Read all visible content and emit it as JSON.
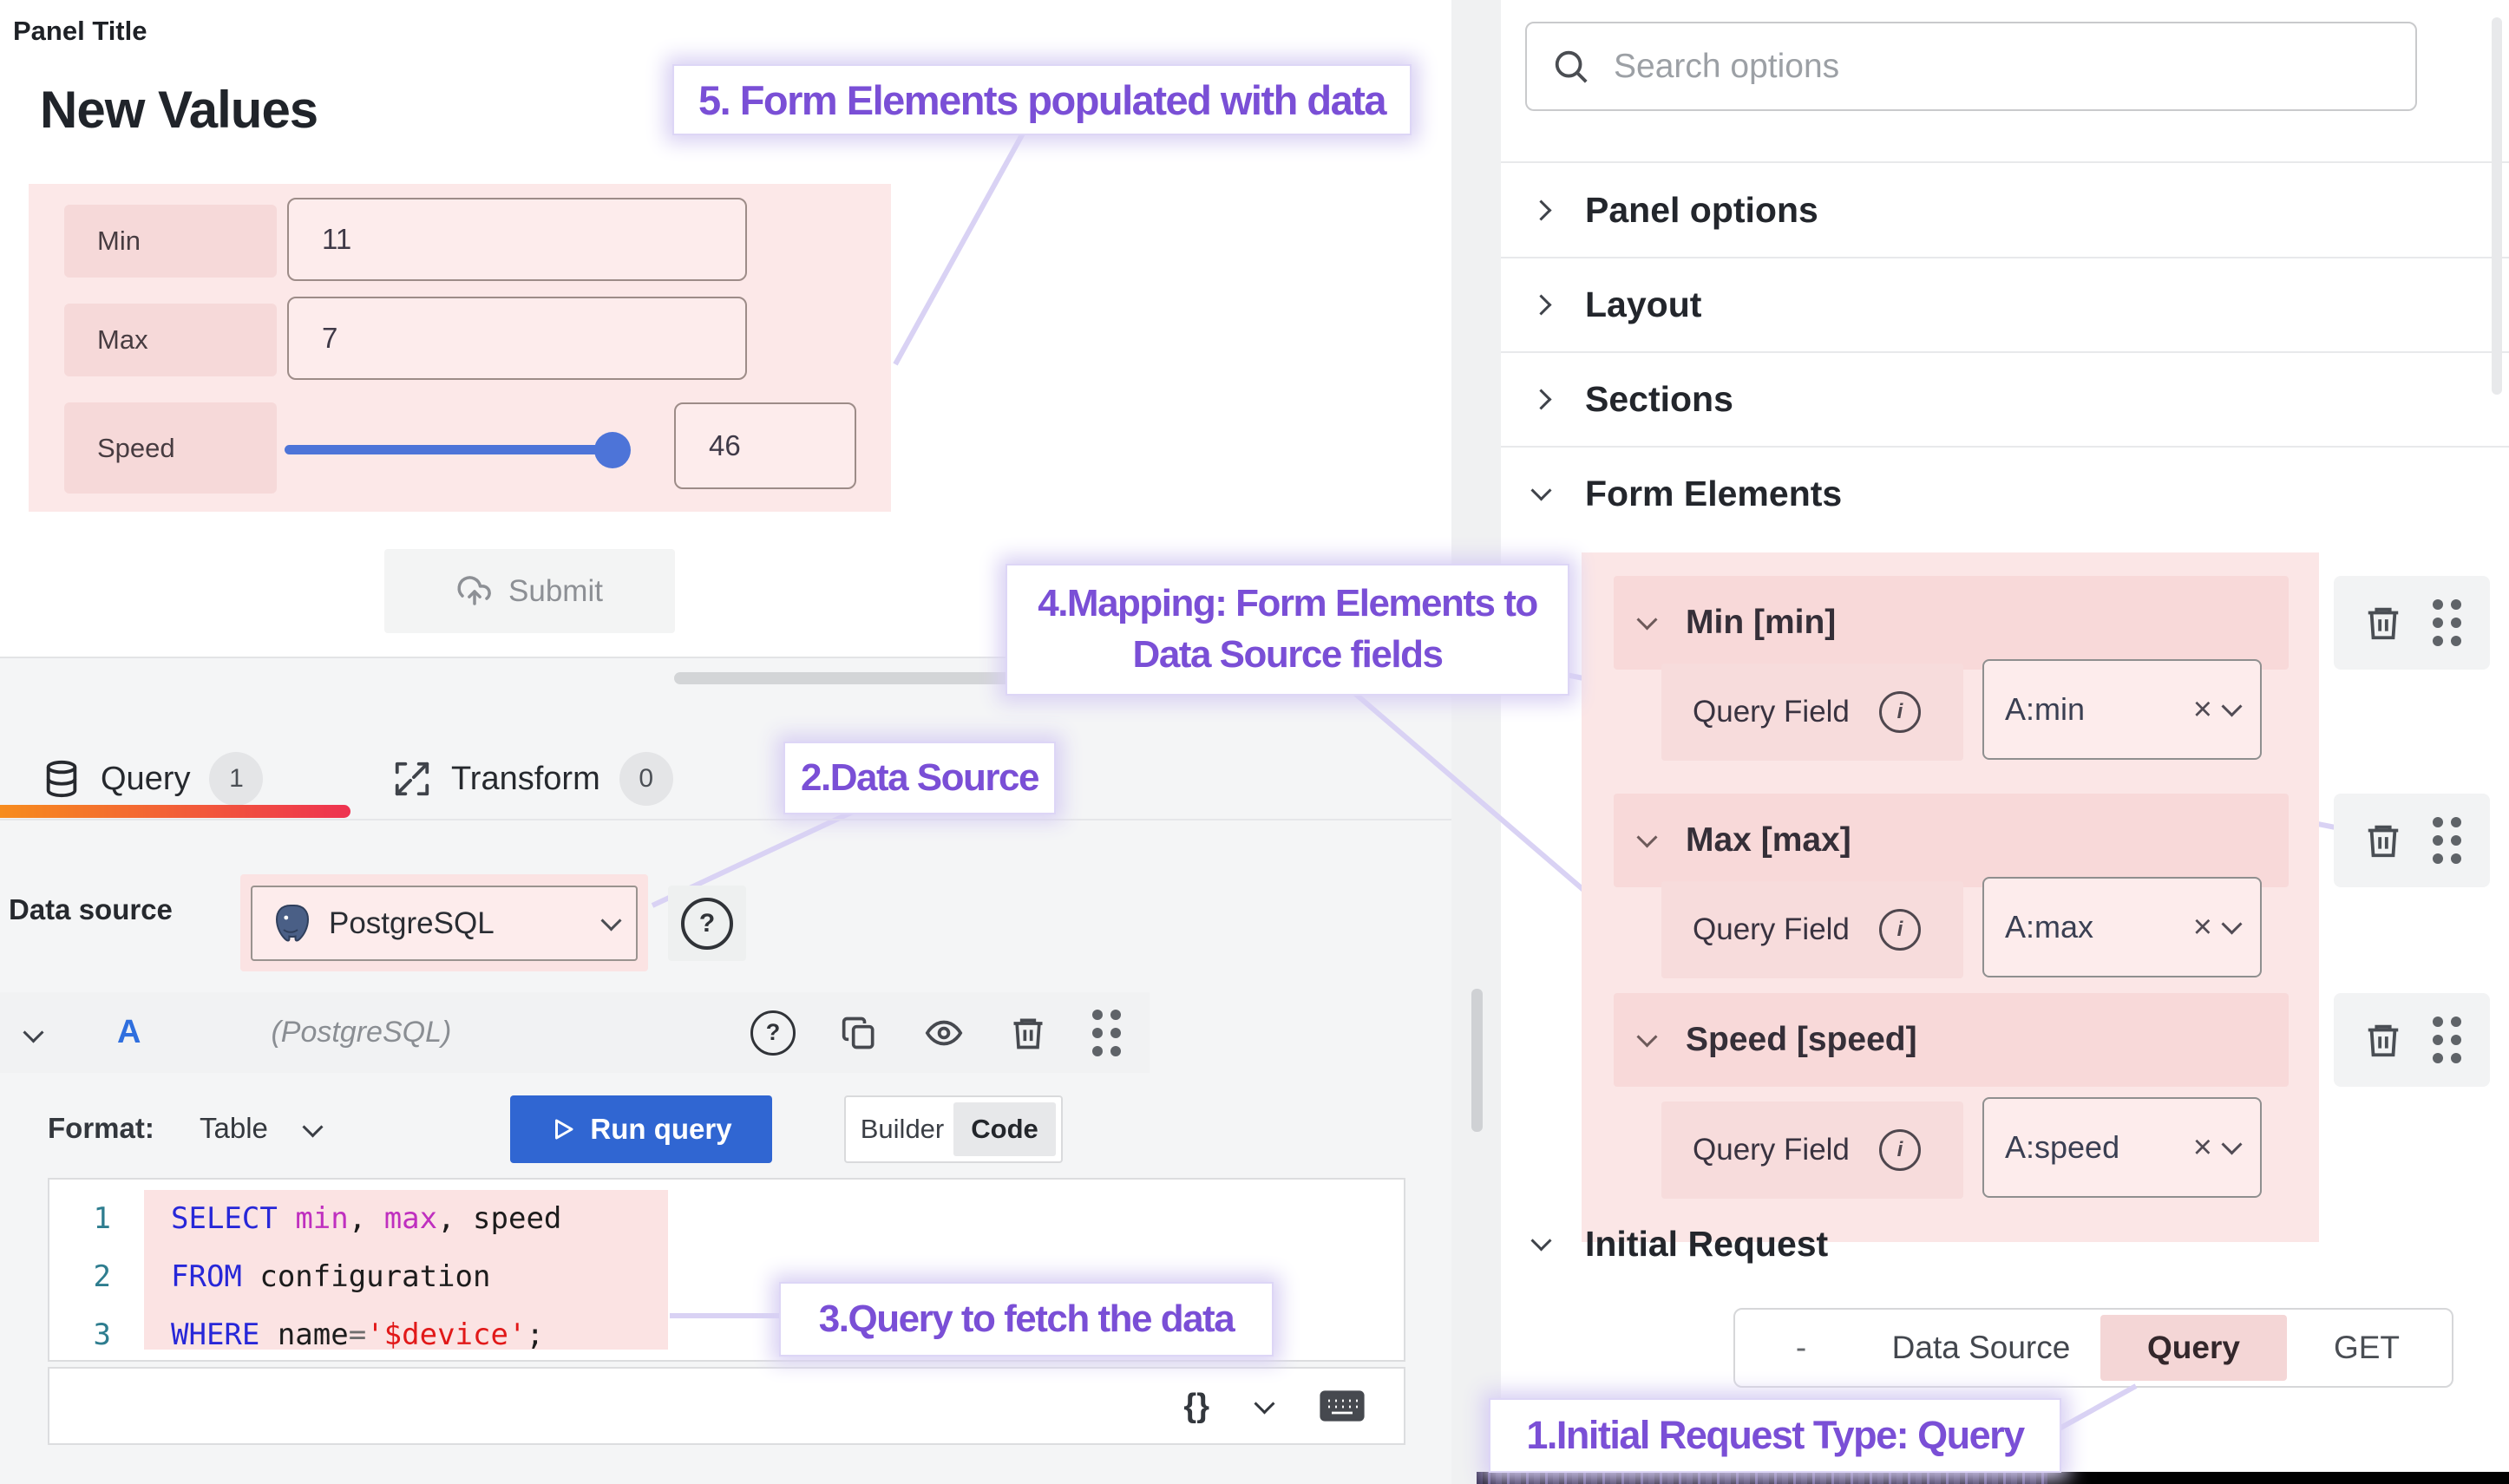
{
  "panel": {
    "title": "Panel Title",
    "heading": "New Values",
    "form": {
      "min_label": "Min",
      "min_value": "11",
      "max_label": "Max",
      "max_value": "7",
      "speed_label": "Speed",
      "speed_value": "46"
    },
    "submit_label": "Submit"
  },
  "query_editor": {
    "tab_query": "Query",
    "tab_query_count": "1",
    "tab_transform": "Transform",
    "tab_transform_count": "0",
    "datasource_label": "Data source",
    "datasource_name": "PostgreSQL",
    "ref_letter": "A",
    "ref_hint": "(PostgreSQL)",
    "format_label": "Format:",
    "format_value": "Table",
    "run_query_label": "Run query",
    "builder_label": "Builder",
    "code_label": "Code",
    "braces_label": "{}"
  },
  "code": {
    "line_numbers": [
      "1",
      "2",
      "3"
    ],
    "lines": [
      [
        {
          "c": "kw",
          "t": "SELECT"
        },
        {
          "c": "pl",
          "t": " "
        },
        {
          "c": "fn",
          "t": "min"
        },
        {
          "c": "pl",
          "t": ", "
        },
        {
          "c": "fn",
          "t": "max"
        },
        {
          "c": "pl",
          "t": ", speed"
        }
      ],
      [
        {
          "c": "kw",
          "t": "FROM"
        },
        {
          "c": "pl",
          "t": " configuration"
        }
      ],
      [
        {
          "c": "kw",
          "t": "WHERE"
        },
        {
          "c": "pl",
          "t": " name"
        },
        {
          "c": "op",
          "t": "="
        },
        {
          "c": "str",
          "t": "'$device'"
        },
        {
          "c": "pl",
          "t": ";"
        }
      ]
    ]
  },
  "options_pane": {
    "search_placeholder": "Search options",
    "sections": [
      {
        "label": "Panel options"
      },
      {
        "label": "Layout"
      },
      {
        "label": "Sections"
      },
      {
        "label": "Form Elements"
      }
    ],
    "form_elements": [
      {
        "title": "Min [min]",
        "field_label": "Query Field",
        "field_value": "A:min"
      },
      {
        "title": "Max [max]",
        "field_label": "Query Field",
        "field_value": "A:max"
      },
      {
        "title": "Speed [speed]",
        "field_label": "Query Field",
        "field_value": "A:speed"
      }
    ],
    "initial_request": {
      "title": "Initial Request",
      "opt_dash": "-",
      "opt_datasource": "Data Source",
      "opt_query": "Query",
      "opt_get": "GET",
      "selected": "Query"
    }
  },
  "annotations": {
    "a1": "1.Initial Request Type: Query",
    "a2": "2.Data Source",
    "a3": "3.Query to fetch the data",
    "a4_line1": "4.Mapping: Form Elements to",
    "a4_line2": "Data Source fields",
    "a5": "5. Form Elements populated with data"
  },
  "colors": {
    "highlight_pink": "#fbe5e5",
    "annotation_purple": "#7a4fd6",
    "connector_purple": "#d9d2f4",
    "run_button_blue": "#3066d2",
    "slider_blue": "#4d74d8",
    "tab_underline_gradient_start": "#f78c1e",
    "tab_underline_gradient_end": "#ee3250"
  }
}
